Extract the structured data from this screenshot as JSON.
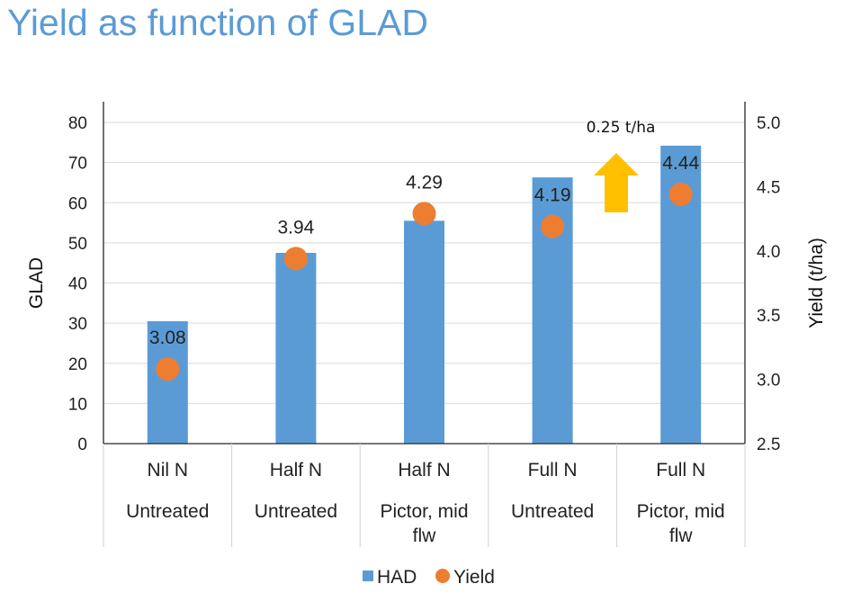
{
  "chart_data": {
    "type": "bar",
    "title": "Yield as function of GLAD",
    "categories": [
      [
        "Nil N",
        "Untreated"
      ],
      [
        "Half N",
        "Untreated"
      ],
      [
        "Half N",
        "Pictor, mid flw"
      ],
      [
        "Full N",
        "Untreated"
      ],
      [
        "Full N",
        "Pictor, mid flw"
      ]
    ],
    "series": [
      {
        "name": "HAD",
        "type": "bar",
        "axis": "left",
        "color": "#5b9bd5",
        "values": [
          30.5,
          47.5,
          55.5,
          66.3,
          74.2
        ]
      },
      {
        "name": "Yield",
        "type": "scatter",
        "axis": "right",
        "color": "#ed7d31",
        "values": [
          3.08,
          3.94,
          4.29,
          4.19,
          4.44
        ],
        "labels": [
          "3.08",
          "3.94",
          "4.29",
          "4.19",
          "4.44"
        ]
      }
    ],
    "y_left": {
      "label": "GLAD",
      "min": 0,
      "max": 80,
      "step": 10,
      "ticks": [
        "0",
        "10",
        "20",
        "30",
        "40",
        "50",
        "60",
        "70",
        "80"
      ]
    },
    "y_right": {
      "label": "Yield (t/ha)",
      "min": 2.5,
      "max": 5.0,
      "step": 0.5,
      "ticks": [
        "2.5",
        "3.0",
        "3.5",
        "4.0",
        "4.5",
        "5.0"
      ]
    },
    "annotation": {
      "text": "0.25 t/ha",
      "icon": "up-arrow-icon",
      "color": "#ffc000"
    },
    "legend": {
      "position": "bottom",
      "entries": [
        "HAD",
        "Yield"
      ]
    },
    "grid": true
  }
}
